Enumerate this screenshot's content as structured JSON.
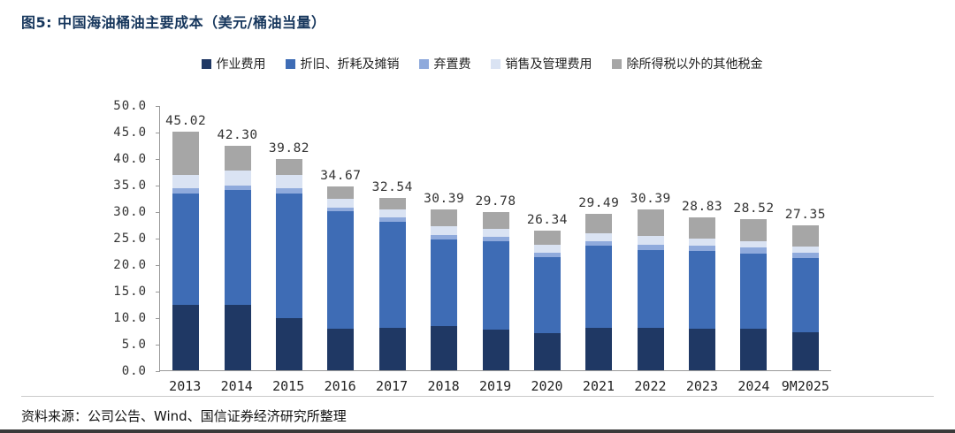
{
  "header": {
    "title": "图5: 中国海油桶油主要成本（美元/桶油当量）"
  },
  "footer": {
    "source": "资料来源：公司公告、Wind、国信证券经济研究所整理"
  },
  "chart_data": {
    "type": "bar",
    "stacked": true,
    "title": "中国海油桶油主要成本（美元/桶油当量）",
    "xlabel": "",
    "ylabel": "",
    "ylim": [
      0,
      50
    ],
    "ytick_step": 5,
    "yticks": [
      "50.0",
      "45.0",
      "40.0",
      "35.0",
      "30.0",
      "25.0",
      "20.0",
      "15.0",
      "10.0",
      "5.0",
      "0.0"
    ],
    "grid": false,
    "legend_position": "top",
    "categories": [
      "2013",
      "2014",
      "2015",
      "2016",
      "2017",
      "2018",
      "2019",
      "2020",
      "2021",
      "2022",
      "2023",
      "2024",
      "9M2025"
    ],
    "totals": [
      45.02,
      42.3,
      39.82,
      34.67,
      32.54,
      30.39,
      29.78,
      26.34,
      29.49,
      30.39,
      28.83,
      28.52,
      27.35
    ],
    "total_labels": [
      "45.02",
      "42.30",
      "39.82",
      "34.67",
      "32.54",
      "30.39",
      "29.78",
      "26.34",
      "29.49",
      "30.39",
      "28.83",
      "28.52",
      "27.35"
    ],
    "series": [
      {
        "name": "作业费用",
        "color": "#1f3864",
        "values": [
          12.3,
          12.4,
          9.8,
          7.8,
          8.0,
          8.4,
          7.7,
          7.0,
          8.0,
          8.0,
          7.9,
          7.8,
          7.2
        ]
      },
      {
        "name": "折旧、折耗及摊销",
        "color": "#3e6cb5",
        "values": [
          21.0,
          21.6,
          23.6,
          22.2,
          20.0,
          16.3,
          16.6,
          14.3,
          15.5,
          14.7,
          14.6,
          14.2,
          14.0
        ]
      },
      {
        "name": "弃置费",
        "color": "#8faadc",
        "values": [
          1.0,
          0.9,
          1.0,
          0.7,
          0.8,
          0.8,
          0.8,
          0.9,
          0.9,
          1.0,
          1.0,
          1.1,
          1.0
        ]
      },
      {
        "name": "销售及管理费用",
        "color": "#dae3f3",
        "values": [
          2.5,
          2.8,
          2.5,
          1.7,
          1.6,
          1.7,
          1.5,
          1.4,
          1.5,
          1.6,
          1.4,
          1.3,
          1.2
        ]
      },
      {
        "name": "除所得税以外的其他税金",
        "color": "#a6a6a6",
        "values": [
          8.22,
          4.6,
          2.92,
          2.27,
          2.14,
          3.19,
          3.18,
          2.74,
          3.59,
          5.09,
          3.93,
          4.12,
          3.95
        ]
      }
    ]
  }
}
